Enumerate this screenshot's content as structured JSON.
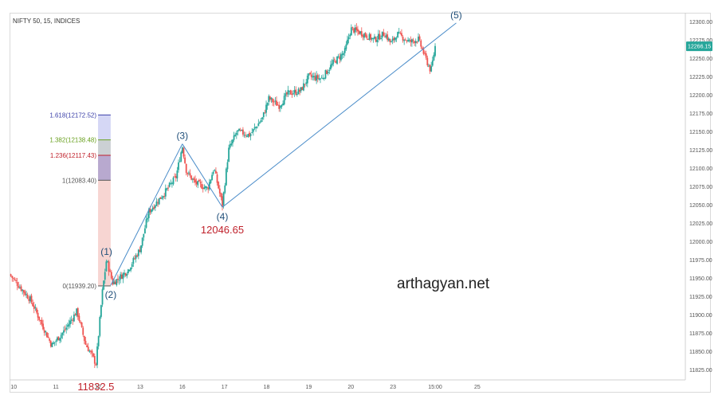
{
  "header": {
    "symbol_label": "NIFTY 50, 15, INDICES"
  },
  "watermark": "arthagyan.net",
  "price_tag": {
    "label": "12266.15",
    "color": "#26a69a"
  },
  "colors": {
    "up": "#26a69a",
    "down": "#ef5350",
    "line": "#4a8cc9",
    "wave_label": "#1f4e79",
    "price_label": "#c0212b"
  },
  "chart_data": {
    "type": "candlestick",
    "title": "",
    "y_axis": {
      "range": [
        11812,
        12312
      ],
      "ticks": [
        12300,
        12275,
        12250,
        12225,
        12200,
        12175,
        12150,
        12125,
        12100,
        12075,
        12050,
        12025,
        12000,
        11975,
        11950,
        11925,
        11900,
        11875,
        11850,
        11825
      ],
      "tick_labels": [
        "12300.00",
        "12275.00",
        "12250.00",
        "12225.00",
        "12200.00",
        "12175.00",
        "12150.00",
        "12125.00",
        "12100.00",
        "12075.00",
        "12050.00",
        "12025.00",
        "12000.00",
        "11975.00",
        "11950.00",
        "11925.00",
        "11900.00",
        "11875.00",
        "11850.00",
        "11825.00"
      ]
    },
    "x_axis": {
      "range": [
        9.9,
        25.9
      ],
      "tick_labels": [
        {
          "x": 10,
          "label": "10"
        },
        {
          "x": 11,
          "label": "11"
        },
        {
          "x": 12,
          "label": "12"
        },
        {
          "x": 13,
          "label": "13"
        },
        {
          "x": 14,
          "label": "16"
        },
        {
          "x": 15,
          "label": "17"
        },
        {
          "x": 16,
          "label": "18"
        },
        {
          "x": 17,
          "label": "19"
        },
        {
          "x": 18,
          "label": "20"
        },
        {
          "x": 19,
          "label": "23"
        },
        {
          "x": 20,
          "label": "15:00"
        },
        {
          "x": 21,
          "label": "25"
        }
      ]
    },
    "price_path": [
      [
        9.9,
        11955
      ],
      [
        10.4,
        11920
      ],
      [
        10.9,
        11858
      ],
      [
        11.2,
        11878
      ],
      [
        11.5,
        11905
      ],
      [
        11.7,
        11860
      ],
      [
        11.85,
        11845
      ],
      [
        11.95,
        11832.5
      ],
      [
        12.1,
        11930
      ],
      [
        12.2,
        11975
      ],
      [
        12.35,
        11943
      ],
      [
        12.7,
        11960
      ],
      [
        13.0,
        11990
      ],
      [
        13.2,
        12040
      ],
      [
        13.6,
        12068
      ],
      [
        13.85,
        12088
      ],
      [
        14.0,
        12130
      ],
      [
        14.1,
        12095
      ],
      [
        14.3,
        12080
      ],
      [
        14.6,
        12072
      ],
      [
        14.75,
        12100
      ],
      [
        14.95,
        12050
      ],
      [
        15.1,
        12125
      ],
      [
        15.3,
        12150
      ],
      [
        15.6,
        12145
      ],
      [
        15.9,
        12168
      ],
      [
        16.05,
        12195
      ],
      [
        16.3,
        12185
      ],
      [
        16.5,
        12202
      ],
      [
        16.8,
        12205
      ],
      [
        17.0,
        12225
      ],
      [
        17.3,
        12222
      ],
      [
        17.6,
        12245
      ],
      [
        17.85,
        12258
      ],
      [
        18.0,
        12290
      ],
      [
        18.3,
        12283
      ],
      [
        18.55,
        12275
      ],
      [
        18.8,
        12284
      ],
      [
        18.95,
        12270
      ],
      [
        19.1,
        12283
      ],
      [
        19.4,
        12272
      ],
      [
        19.6,
        12276
      ],
      [
        19.8,
        12246
      ],
      [
        19.9,
        12232
      ],
      [
        20.0,
        12266.15
      ]
    ],
    "waves": [
      {
        "label": "(1)",
        "x": 12.2,
        "y": 11975,
        "pos": "above"
      },
      {
        "label": "(2)",
        "x": 12.3,
        "y": 11940,
        "pos": "below"
      },
      {
        "label": "(3)",
        "x": 14.0,
        "y": 12133,
        "pos": "above"
      },
      {
        "label": "(4)",
        "x": 14.95,
        "y": 12046.65,
        "pos": "below"
      },
      {
        "label": "(5)",
        "x": 20.5,
        "y": 12298,
        "pos": "above"
      }
    ],
    "wave_lines": [
      [
        [
          12.3,
          11940
        ],
        [
          14.0,
          12133
        ]
      ],
      [
        [
          14.0,
          12133
        ],
        [
          14.95,
          12046.65
        ]
      ],
      [
        [
          14.95,
          12046.65
        ],
        [
          20.5,
          12298
        ]
      ]
    ],
    "price_labels": [
      {
        "label": "11832.5",
        "x": 11.95,
        "y": 11832.5
      },
      {
        "label": "12046.65",
        "x": 14.95,
        "y": 12046.65
      }
    ],
    "fib_levels": [
      {
        "label": "1.618(12172.52)",
        "value": 12172.52,
        "color": "#3a3fa8",
        "fill": "#c7c9f2"
      },
      {
        "label": "1.382(12138.48)",
        "value": 12138.48,
        "color": "#6aa121",
        "fill": "#b9c0c6"
      },
      {
        "label": "1.236(12117.43)",
        "value": 12117.43,
        "color": "#c0212b",
        "fill": "#a08cbf"
      },
      {
        "label": "1(12083.40)",
        "value": 12083.4,
        "color": "#555555",
        "fill": "#f4c7c3"
      },
      {
        "label": "0(11939.20)",
        "value": 11939.2,
        "color": "#555555",
        "fill": ""
      }
    ],
    "fib_x_range": [
      12.0,
      12.3
    ]
  }
}
